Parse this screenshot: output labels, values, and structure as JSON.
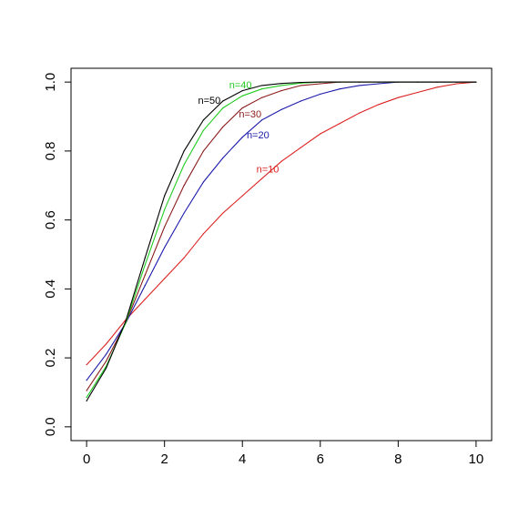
{
  "chart_data": {
    "type": "line",
    "title": "",
    "xlabel": "",
    "ylabel": "",
    "xlim": [
      -0.4,
      10.4
    ],
    "ylim": [
      -0.04,
      1.04
    ],
    "grid": false,
    "x_ticks": [
      0,
      2,
      4,
      6,
      8,
      10
    ],
    "y_ticks": [
      0.0,
      0.2,
      0.4,
      0.6,
      0.8,
      1.0
    ],
    "x_tick_labels": [
      "0",
      "2",
      "4",
      "6",
      "8",
      "10"
    ],
    "y_tick_labels": [
      "0.0",
      "0.2",
      "0.4",
      "0.6",
      "0.8",
      "1.0"
    ],
    "x": [
      0,
      0.5,
      1,
      1.5,
      2,
      2.5,
      3,
      3.5,
      4,
      4.5,
      5,
      5.5,
      6,
      6.5,
      7,
      7.5,
      8,
      8.5,
      9,
      9.5,
      10
    ],
    "series": [
      {
        "name": "n=10",
        "color": "#dd2222",
        "values": [
          0.18,
          0.24,
          0.31,
          0.37,
          0.43,
          0.49,
          0.56,
          0.62,
          0.67,
          0.72,
          0.77,
          0.81,
          0.85,
          0.88,
          0.91,
          0.935,
          0.955,
          0.97,
          0.985,
          0.995,
          1.0
        ]
      },
      {
        "name": "n=20",
        "color": "#1a1aaa",
        "values": [
          0.135,
          0.21,
          0.3,
          0.41,
          0.52,
          0.62,
          0.71,
          0.78,
          0.84,
          0.89,
          0.92,
          0.945,
          0.965,
          0.98,
          0.99,
          0.995,
          1.0,
          1.0,
          1.0,
          1.0,
          1.0
        ]
      },
      {
        "name": "n=30",
        "color": "#8b1a1a",
        "values": [
          0.105,
          0.19,
          0.3,
          0.44,
          0.58,
          0.7,
          0.8,
          0.87,
          0.925,
          0.955,
          0.975,
          0.99,
          0.995,
          1.0,
          1.0,
          1.0,
          1.0,
          1.0,
          1.0,
          1.0,
          1.0
        ]
      },
      {
        "name": "n=40",
        "color": "#22cc22",
        "values": [
          0.085,
          0.175,
          0.3,
          0.47,
          0.63,
          0.76,
          0.86,
          0.925,
          0.96,
          0.98,
          0.99,
          0.997,
          1.0,
          1.0,
          1.0,
          1.0,
          1.0,
          1.0,
          1.0,
          1.0,
          1.0
        ]
      },
      {
        "name": "n=50",
        "color": "#000000",
        "values": [
          0.075,
          0.17,
          0.305,
          0.49,
          0.67,
          0.8,
          0.89,
          0.945,
          0.975,
          0.99,
          0.996,
          0.999,
          1.0,
          1.0,
          1.0,
          1.0,
          1.0,
          1.0,
          1.0,
          1.0,
          1.0
        ]
      }
    ],
    "annotations": [
      {
        "text": "n=10",
        "series": "n=10",
        "x": 4.65,
        "y": 0.745,
        "color": "#dd2222"
      },
      {
        "text": "n=20",
        "series": "n=20",
        "x": 4.4,
        "y": 0.845,
        "color": "#1a1aaa"
      },
      {
        "text": "n=30",
        "series": "n=30",
        "x": 4.2,
        "y": 0.905,
        "color": "#8b1a1a"
      },
      {
        "text": "n=40",
        "series": "n=40",
        "x": 3.95,
        "y": 0.99,
        "color": "#22cc22"
      },
      {
        "text": "n=50",
        "series": "n=50",
        "x": 3.15,
        "y": 0.945,
        "color": "#000000"
      }
    ]
  }
}
